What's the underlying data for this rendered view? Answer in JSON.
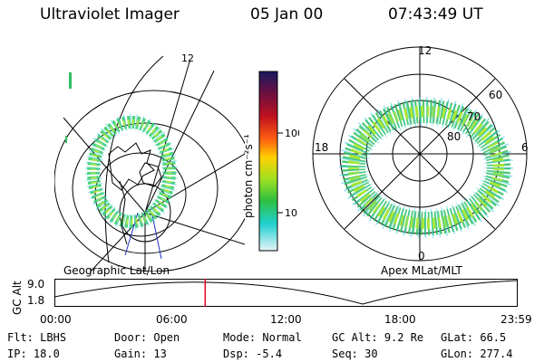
{
  "header": {
    "instrument": "Ultraviolet Imager",
    "date": "05 Jan 00",
    "time": "07:43:49 UT"
  },
  "colorbar": {
    "label": "photon cm⁻²s⁻¹",
    "ticks": [
      "100",
      "10"
    ]
  },
  "panels": {
    "left_caption": "Geographic Lat/Lon",
    "right_caption": "Apex MLat/MLT"
  },
  "polar_labels": {
    "mlt": [
      "12",
      "18",
      "6",
      "0"
    ],
    "mlat": [
      "60",
      "70",
      "80"
    ]
  },
  "geo_labels": {
    "lon_label": "12"
  },
  "altitude_plot": {
    "ylabel": "GC Alt",
    "yticks": [
      "9.0",
      "1.8"
    ],
    "xticks": [
      "00:00",
      "06:00",
      "12:00",
      "18:00",
      "23:59"
    ],
    "marker_fraction": 0.326
  },
  "info_rows": [
    [
      {
        "label": "Flt:",
        "value": "LBHS"
      },
      {
        "label": "Door:",
        "value": "Open"
      },
      {
        "label": "Mode:",
        "value": "Normal"
      },
      {
        "label": "GC Alt:",
        "value": "9.2 Re"
      },
      {
        "label": "GLat:",
        "value": "66.5"
      }
    ],
    [
      {
        "label": "IP:",
        "value": "18.0"
      },
      {
        "label": "Gain:",
        "value": "13"
      },
      {
        "label": "Dsp:",
        "value": "-5.4"
      },
      {
        "label": "Seq:",
        "value": "30"
      },
      {
        "label": "GLon:",
        "value": "277.4"
      }
    ]
  ],
  "colors": {
    "marker": "#e0001a",
    "aurora_scale": [
      "#1a1a60",
      "#6a1040",
      "#c01020",
      "#ff6010",
      "#ffd000",
      "#a0e020",
      "#30c040",
      "#20d0d0",
      "#d8f0f8"
    ]
  }
}
